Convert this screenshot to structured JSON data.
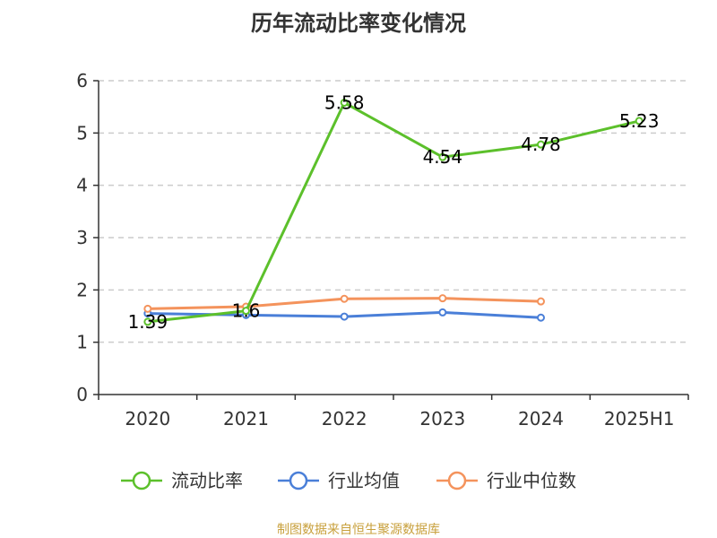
{
  "chart_data": {
    "type": "line",
    "title": "历年流动比率变化情况",
    "categories": [
      "2020",
      "2021",
      "2022",
      "2023",
      "2024",
      "2025H1"
    ],
    "ylim": [
      0,
      6
    ],
    "yticks": [
      "0",
      "1",
      "2",
      "3",
      "4",
      "5",
      "6"
    ],
    "grid": true,
    "legend_position": "bottom",
    "series": [
      {
        "name": "流动比率",
        "color": "#5cc02b",
        "values": [
          1.39,
          1.6,
          5.58,
          4.54,
          4.78,
          5.23
        ],
        "labels": [
          "1.39",
          "1.6",
          "5.58",
          "4.54",
          "4.78",
          "5.23"
        ]
      },
      {
        "name": "行业均值",
        "color": "#4a7fd8",
        "values": [
          1.55,
          1.52,
          1.49,
          1.57,
          1.47,
          null
        ]
      },
      {
        "name": "行业中位数",
        "color": "#f4935c",
        "values": [
          1.64,
          1.68,
          1.83,
          1.84,
          1.78,
          null
        ]
      }
    ]
  },
  "source_text": "制图数据来自恒生聚源数据库",
  "source_color": "#c8a03c"
}
